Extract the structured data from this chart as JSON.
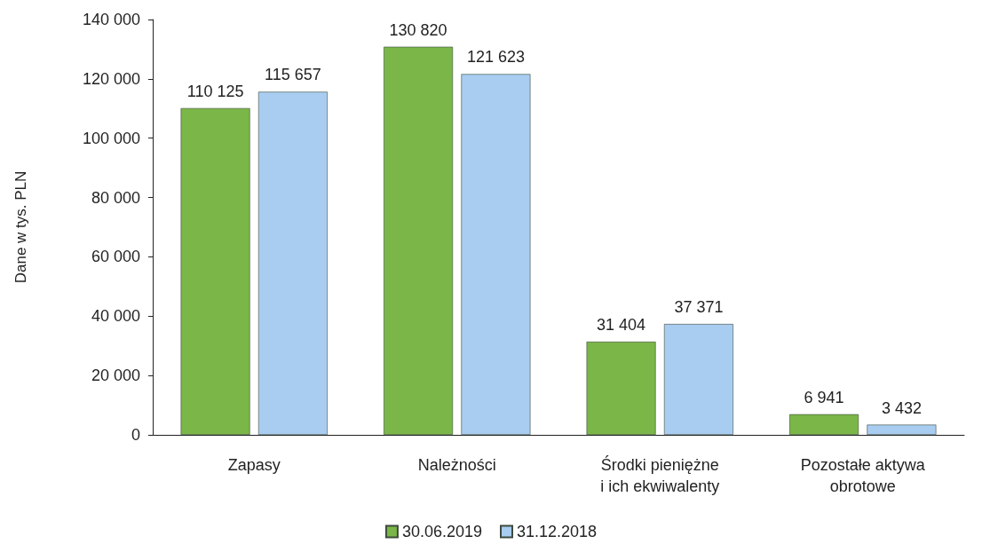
{
  "chart_data": {
    "type": "bar",
    "ylabel": "Dane w tys. PLN",
    "categories": [
      "Zapasy",
      "Należności",
      "Środki pieniężne\ni ich ekwiwalenty",
      "Pozostałe aktywa\nobrotowe"
    ],
    "series": [
      {
        "name": "30.06.2019",
        "color": "#7ab648",
        "values": [
          110125,
          130820,
          31404,
          6941
        ],
        "value_labels": [
          "110 125",
          "130 820",
          "31 404",
          "6 941"
        ]
      },
      {
        "name": "31.12.2018",
        "color": "#a9cdf0",
        "values": [
          115657,
          121623,
          37371,
          3432
        ],
        "value_labels": [
          "115 657",
          "121 623",
          "37 371",
          "3 432"
        ]
      }
    ],
    "ylim": [
      0,
      140000
    ],
    "yticks": [
      {
        "value": 0,
        "label": "0"
      },
      {
        "value": 20000,
        "label": "20 000"
      },
      {
        "value": 40000,
        "label": "40 000"
      },
      {
        "value": 60000,
        "label": "60 000"
      },
      {
        "value": 80000,
        "label": "80 000"
      },
      {
        "value": 100000,
        "label": "100 000"
      },
      {
        "value": 120000,
        "label": "120 000"
      },
      {
        "value": 140000,
        "label": "140 000"
      }
    ],
    "grid": false,
    "legend": "bottom"
  }
}
